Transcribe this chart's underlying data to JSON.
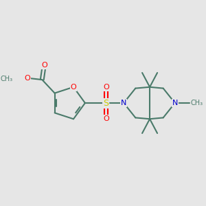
{
  "bg_color": "#e6e6e6",
  "bond_color": "#4a7a6a",
  "bond_width": 1.5,
  "atom_colors": {
    "O": "#ff0000",
    "N": "#0000cc",
    "S": "#cccc00",
    "C": "#4a7a6a"
  },
  "figsize": [
    3.0,
    3.0
  ],
  "dpi": 100
}
